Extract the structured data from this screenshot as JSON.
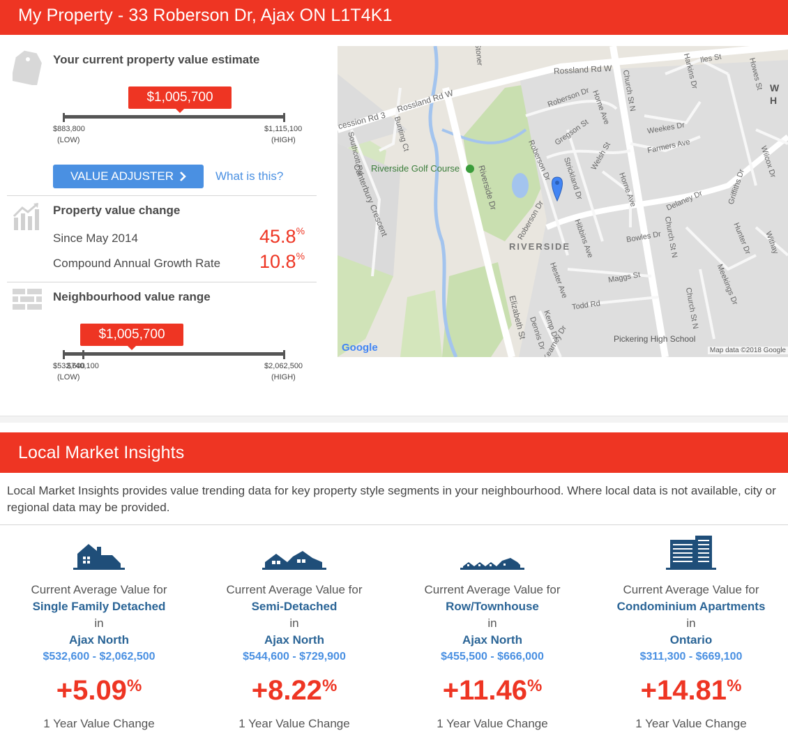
{
  "header": {
    "title": "My Property - 33 Roberson Dr, Ajax ON L1T4K1"
  },
  "estimate": {
    "heading": "Your current property value estimate",
    "value": "$1,005,700",
    "low_value": "$883,800",
    "low_label": "(LOW)",
    "high_value": "$1,115,100",
    "high_label": "(HIGH)",
    "position_fraction": 0.53
  },
  "adjuster": {
    "button_label": "VALUE ADJUSTER",
    "help_link": "What is this?"
  },
  "change": {
    "heading": "Property value change",
    "rows": [
      {
        "label": "Since May 2014",
        "value": "45.8",
        "unit": "%"
      },
      {
        "label": "Compound Annual Growth Rate",
        "value": "10.8",
        "unit": "%"
      }
    ]
  },
  "neighbourhood": {
    "heading": "Neighbourhood value range",
    "value": "$1,005,700",
    "low_value": "$532,600",
    "mid_value": "$740,100",
    "low_label": "(LOW)",
    "high_value": "$2,062,500",
    "high_label": "(HIGH)",
    "position_fraction": 0.31
  },
  "map": {
    "labels": {
      "rossland_e": "Rossland Rd W",
      "rossland_w": "Rossland Rd W",
      "concession": "cession Rd 3",
      "golf": "Riverside Golf Course",
      "riverside_dr": "Riverside Dr",
      "riverside_area": "RIVERSIDE",
      "church": "Church St N",
      "church2": "Church St N",
      "church3": "Church St N",
      "roberson": "Roberson Dr",
      "roberson2": "Roberson Dr",
      "roberson3": "Roberson Dr",
      "gregson": "Gregson St",
      "horne": "Horne Ave",
      "horne2": "Horne Ave",
      "welsh": "Welsh St",
      "strickland": "Strickland Dr",
      "hibbins": "Hibbins Ave",
      "bowles": "Bowles Dr",
      "delaney": "Delaney Dr",
      "weekes": "Weekes Dr",
      "farmers": "Farmers Ave",
      "griffiths": "Griffiths Dr",
      "hunter": "Hunter Dr",
      "meekings": "Meekings Dr",
      "harkins": "Harkins Dr",
      "iles": "Iles St",
      "howes": "Howes St",
      "wilcox": "Wilcox Dr",
      "withay": "Withay",
      "maggs": "Maggs St",
      "todd": "Todd Rd",
      "hester": "Hester Ave",
      "kemp": "Kemp Dr",
      "dennis": "Dennis Dr",
      "kearney": "Kearney Dr",
      "elizabeth": "Elizabeth St",
      "bunting": "Bunting Ct",
      "southcott": "Southcott Rd",
      "canterbury": "Canterbury Crescent",
      "stoner": "Stoner",
      "pickering": "Pickering High School",
      "w_corner": "W",
      "h_corner": "H",
      "google": "Google",
      "attribution": "Map data ©2018 Google"
    }
  },
  "insights": {
    "title": "Local Market Insights",
    "intro": "Local Market Insights provides value trending data for key property style segments in your neighbourhood. Where local data is not available, city or regional data may be provided.",
    "columns": [
      {
        "icon": "single-family-house-icon",
        "prefix": "Current Average Value for",
        "segment": "Single Family Detached",
        "in": "in",
        "location": "Ajax North",
        "range": "$532,600 - $2,062,500",
        "change": "+5.09",
        "unit": "%",
        "caption": "1 Year Value Change"
      },
      {
        "icon": "semi-detached-house-icon",
        "prefix": "Current Average Value for",
        "segment": "Semi-Detached",
        "in": "in",
        "location": "Ajax North",
        "range": "$544,600 - $729,900",
        "change": "+8.22",
        "unit": "%",
        "caption": "1 Year Value Change"
      },
      {
        "icon": "townhouse-icon",
        "prefix": "Current Average Value for",
        "segment": "Row/Townhouse",
        "in": "in",
        "location": "Ajax North",
        "range": "$455,500 - $666,000",
        "change": "+11.46",
        "unit": "%",
        "caption": "1 Year Value Change"
      },
      {
        "icon": "condo-building-icon",
        "prefix": "Current Average Value for",
        "segment": "Condominium Apartments",
        "in": "in",
        "location": "Ontario",
        "range": "$311,300 - $669,100",
        "change": "+14.81",
        "unit": "%",
        "caption": "1 Year Value Change"
      }
    ]
  },
  "colors": {
    "brand_red": "#ee3523",
    "link_blue": "#4a90e2",
    "dark_blue": "#2a6496",
    "icon_navy": "#1f4e79"
  }
}
